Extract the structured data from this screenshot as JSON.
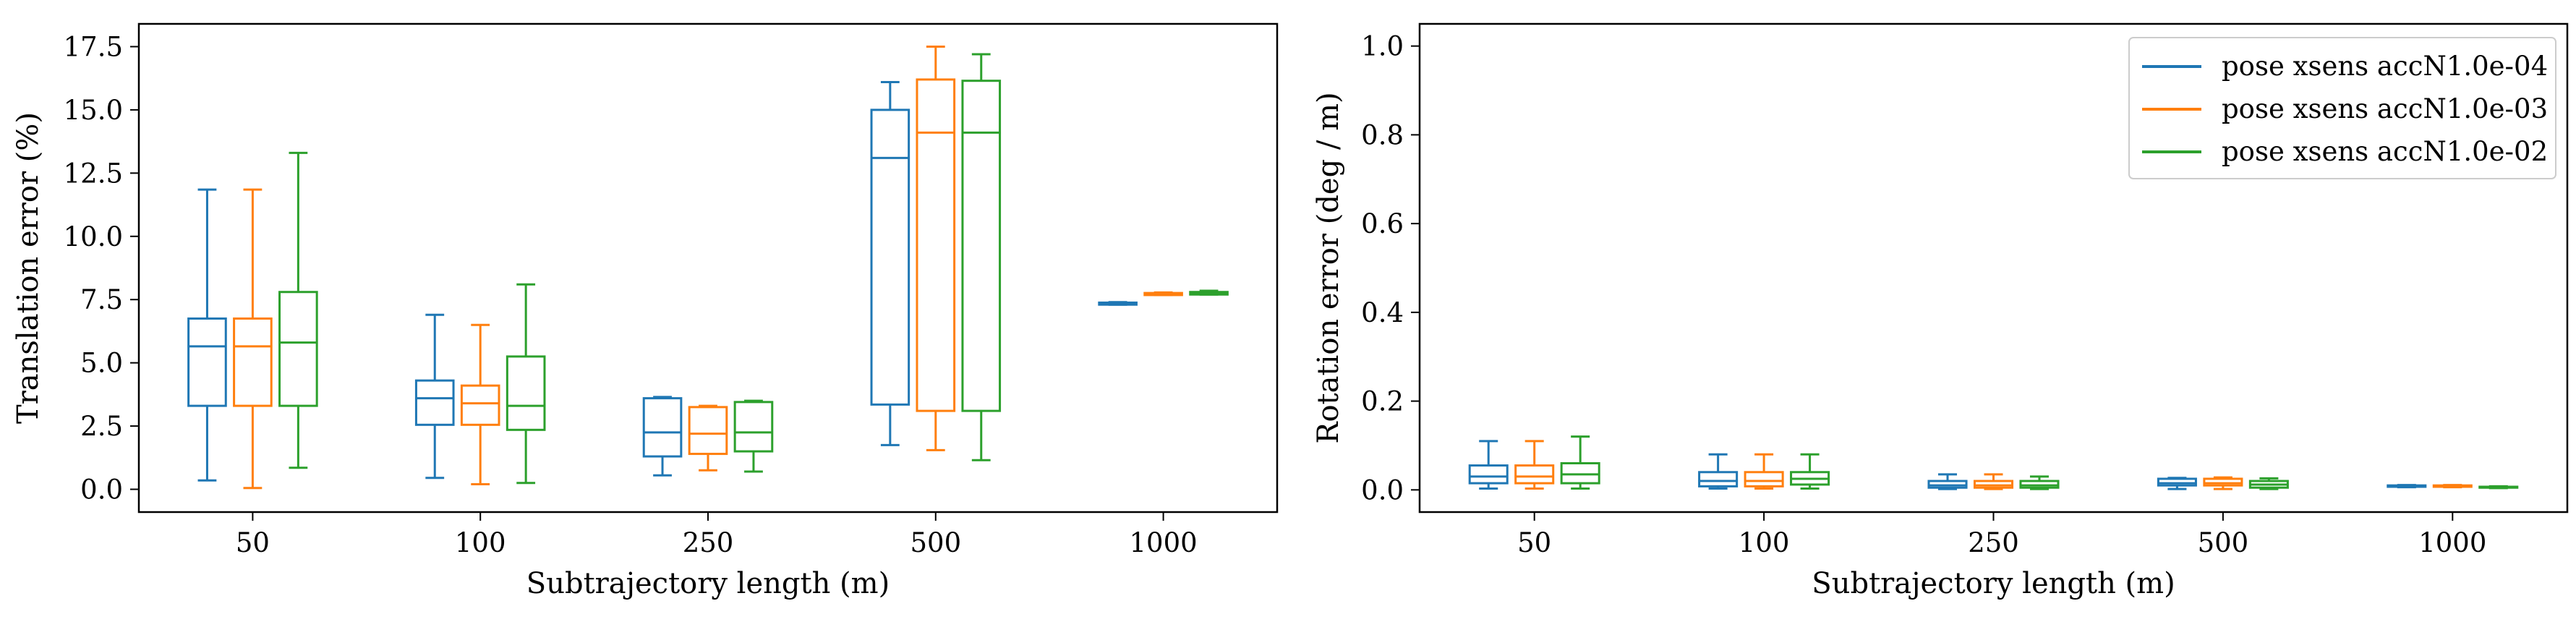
{
  "chart_data": [
    {
      "type": "box",
      "xlabel": "Subtrajectory length (m)",
      "ylabel": "Translation error (%)",
      "categories": [
        "50",
        "100",
        "250",
        "500",
        "1000"
      ],
      "ylim": [
        -0.9,
        18.4
      ],
      "yticks": [
        0.0,
        2.5,
        5.0,
        7.5,
        10.0,
        12.5,
        15.0,
        17.5
      ],
      "ytick_labels": [
        "0.0",
        "2.5",
        "5.0",
        "7.5",
        "10.0",
        "12.5",
        "15.0",
        "17.5"
      ],
      "grid": false,
      "series": [
        {
          "name": "pose xsens accN1.0e-04",
          "color": "#1f77b4",
          "boxes": [
            {
              "whislo": 0.35,
              "q1": 3.3,
              "med": 5.65,
              "q3": 6.75,
              "whishi": 11.85
            },
            {
              "whislo": 0.45,
              "q1": 2.55,
              "med": 3.6,
              "q3": 4.3,
              "whishi": 6.9
            },
            {
              "whislo": 0.55,
              "q1": 1.3,
              "med": 2.25,
              "q3": 3.6,
              "whishi": 3.65
            },
            {
              "whislo": 1.75,
              "q1": 3.35,
              "med": 13.1,
              "q3": 15.0,
              "whishi": 16.1
            },
            {
              "whislo": 7.3,
              "q1": 7.3,
              "med": 7.33,
              "q3": 7.38,
              "whishi": 7.4
            }
          ]
        },
        {
          "name": "pose xsens accN1.0e-03",
          "color": "#ff7f0e",
          "boxes": [
            {
              "whislo": 0.05,
              "q1": 3.3,
              "med": 5.65,
              "q3": 6.75,
              "whishi": 11.85
            },
            {
              "whislo": 0.2,
              "q1": 2.55,
              "med": 3.4,
              "q3": 4.1,
              "whishi": 6.5
            },
            {
              "whislo": 0.75,
              "q1": 1.4,
              "med": 2.2,
              "q3": 3.25,
              "whishi": 3.3
            },
            {
              "whislo": 1.55,
              "q1": 3.1,
              "med": 14.1,
              "q3": 16.2,
              "whishi": 17.5
            },
            {
              "whislo": 7.68,
              "q1": 7.68,
              "med": 7.72,
              "q3": 7.76,
              "whishi": 7.78
            }
          ]
        },
        {
          "name": "pose xsens accN1.0e-02",
          "color": "#2ca02c",
          "boxes": [
            {
              "whislo": 0.85,
              "q1": 3.3,
              "med": 5.8,
              "q3": 7.8,
              "whishi": 13.3
            },
            {
              "whislo": 0.25,
              "q1": 2.35,
              "med": 3.3,
              "q3": 5.25,
              "whishi": 8.1
            },
            {
              "whislo": 0.7,
              "q1": 1.5,
              "med": 2.25,
              "q3": 3.45,
              "whishi": 3.5
            },
            {
              "whislo": 1.15,
              "q1": 3.1,
              "med": 14.1,
              "q3": 16.15,
              "whishi": 17.2
            },
            {
              "whislo": 7.7,
              "q1": 7.7,
              "med": 7.75,
              "q3": 7.8,
              "whishi": 7.85
            }
          ]
        }
      ]
    },
    {
      "type": "box",
      "xlabel": "Subtrajectory length (m)",
      "ylabel": "Rotation error (deg / m)",
      "categories": [
        "50",
        "100",
        "250",
        "500",
        "1000"
      ],
      "ylim": [
        -0.05,
        1.05
      ],
      "yticks": [
        0.0,
        0.2,
        0.4,
        0.6,
        0.8,
        1.0
      ],
      "ytick_labels": [
        "0.0",
        "0.2",
        "0.4",
        "0.6",
        "0.8",
        "1.0"
      ],
      "grid": false,
      "legend": {
        "position": "top-right",
        "entries": [
          "pose xsens accN1.0e-04",
          "pose xsens accN1.0e-03",
          "pose xsens accN1.0e-02"
        ]
      },
      "series": [
        {
          "name": "pose xsens accN1.0e-04",
          "color": "#1f77b4",
          "boxes": [
            {
              "whislo": 0.003,
              "q1": 0.015,
              "med": 0.03,
              "q3": 0.055,
              "whishi": 0.11
            },
            {
              "whislo": 0.003,
              "q1": 0.008,
              "med": 0.02,
              "q3": 0.04,
              "whishi": 0.08
            },
            {
              "whislo": 0.002,
              "q1": 0.005,
              "med": 0.01,
              "q3": 0.02,
              "whishi": 0.035
            },
            {
              "whislo": 0.002,
              "q1": 0.01,
              "med": 0.015,
              "q3": 0.025,
              "whishi": 0.027
            },
            {
              "whislo": 0.006,
              "q1": 0.007,
              "med": 0.008,
              "q3": 0.01,
              "whishi": 0.011
            }
          ]
        },
        {
          "name": "pose xsens accN1.0e-03",
          "color": "#ff7f0e",
          "boxes": [
            {
              "whislo": 0.003,
              "q1": 0.015,
              "med": 0.03,
              "q3": 0.055,
              "whishi": 0.11
            },
            {
              "whislo": 0.003,
              "q1": 0.008,
              "med": 0.02,
              "q3": 0.04,
              "whishi": 0.08
            },
            {
              "whislo": 0.002,
              "q1": 0.005,
              "med": 0.01,
              "q3": 0.02,
              "whishi": 0.035
            },
            {
              "whislo": 0.002,
              "q1": 0.01,
              "med": 0.015,
              "q3": 0.025,
              "whishi": 0.028
            },
            {
              "whislo": 0.006,
              "q1": 0.007,
              "med": 0.008,
              "q3": 0.01,
              "whishi": 0.011
            }
          ]
        },
        {
          "name": "pose xsens accN1.0e-02",
          "color": "#2ca02c",
          "boxes": [
            {
              "whislo": 0.003,
              "q1": 0.015,
              "med": 0.035,
              "q3": 0.06,
              "whishi": 0.12
            },
            {
              "whislo": 0.003,
              "q1": 0.012,
              "med": 0.025,
              "q3": 0.04,
              "whishi": 0.08
            },
            {
              "whislo": 0.002,
              "q1": 0.005,
              "med": 0.01,
              "q3": 0.02,
              "whishi": 0.03
            },
            {
              "whislo": 0.002,
              "q1": 0.005,
              "med": 0.012,
              "q3": 0.02,
              "whishi": 0.026
            },
            {
              "whislo": 0.004,
              "q1": 0.005,
              "med": 0.006,
              "q3": 0.007,
              "whishi": 0.008
            }
          ]
        }
      ]
    }
  ]
}
